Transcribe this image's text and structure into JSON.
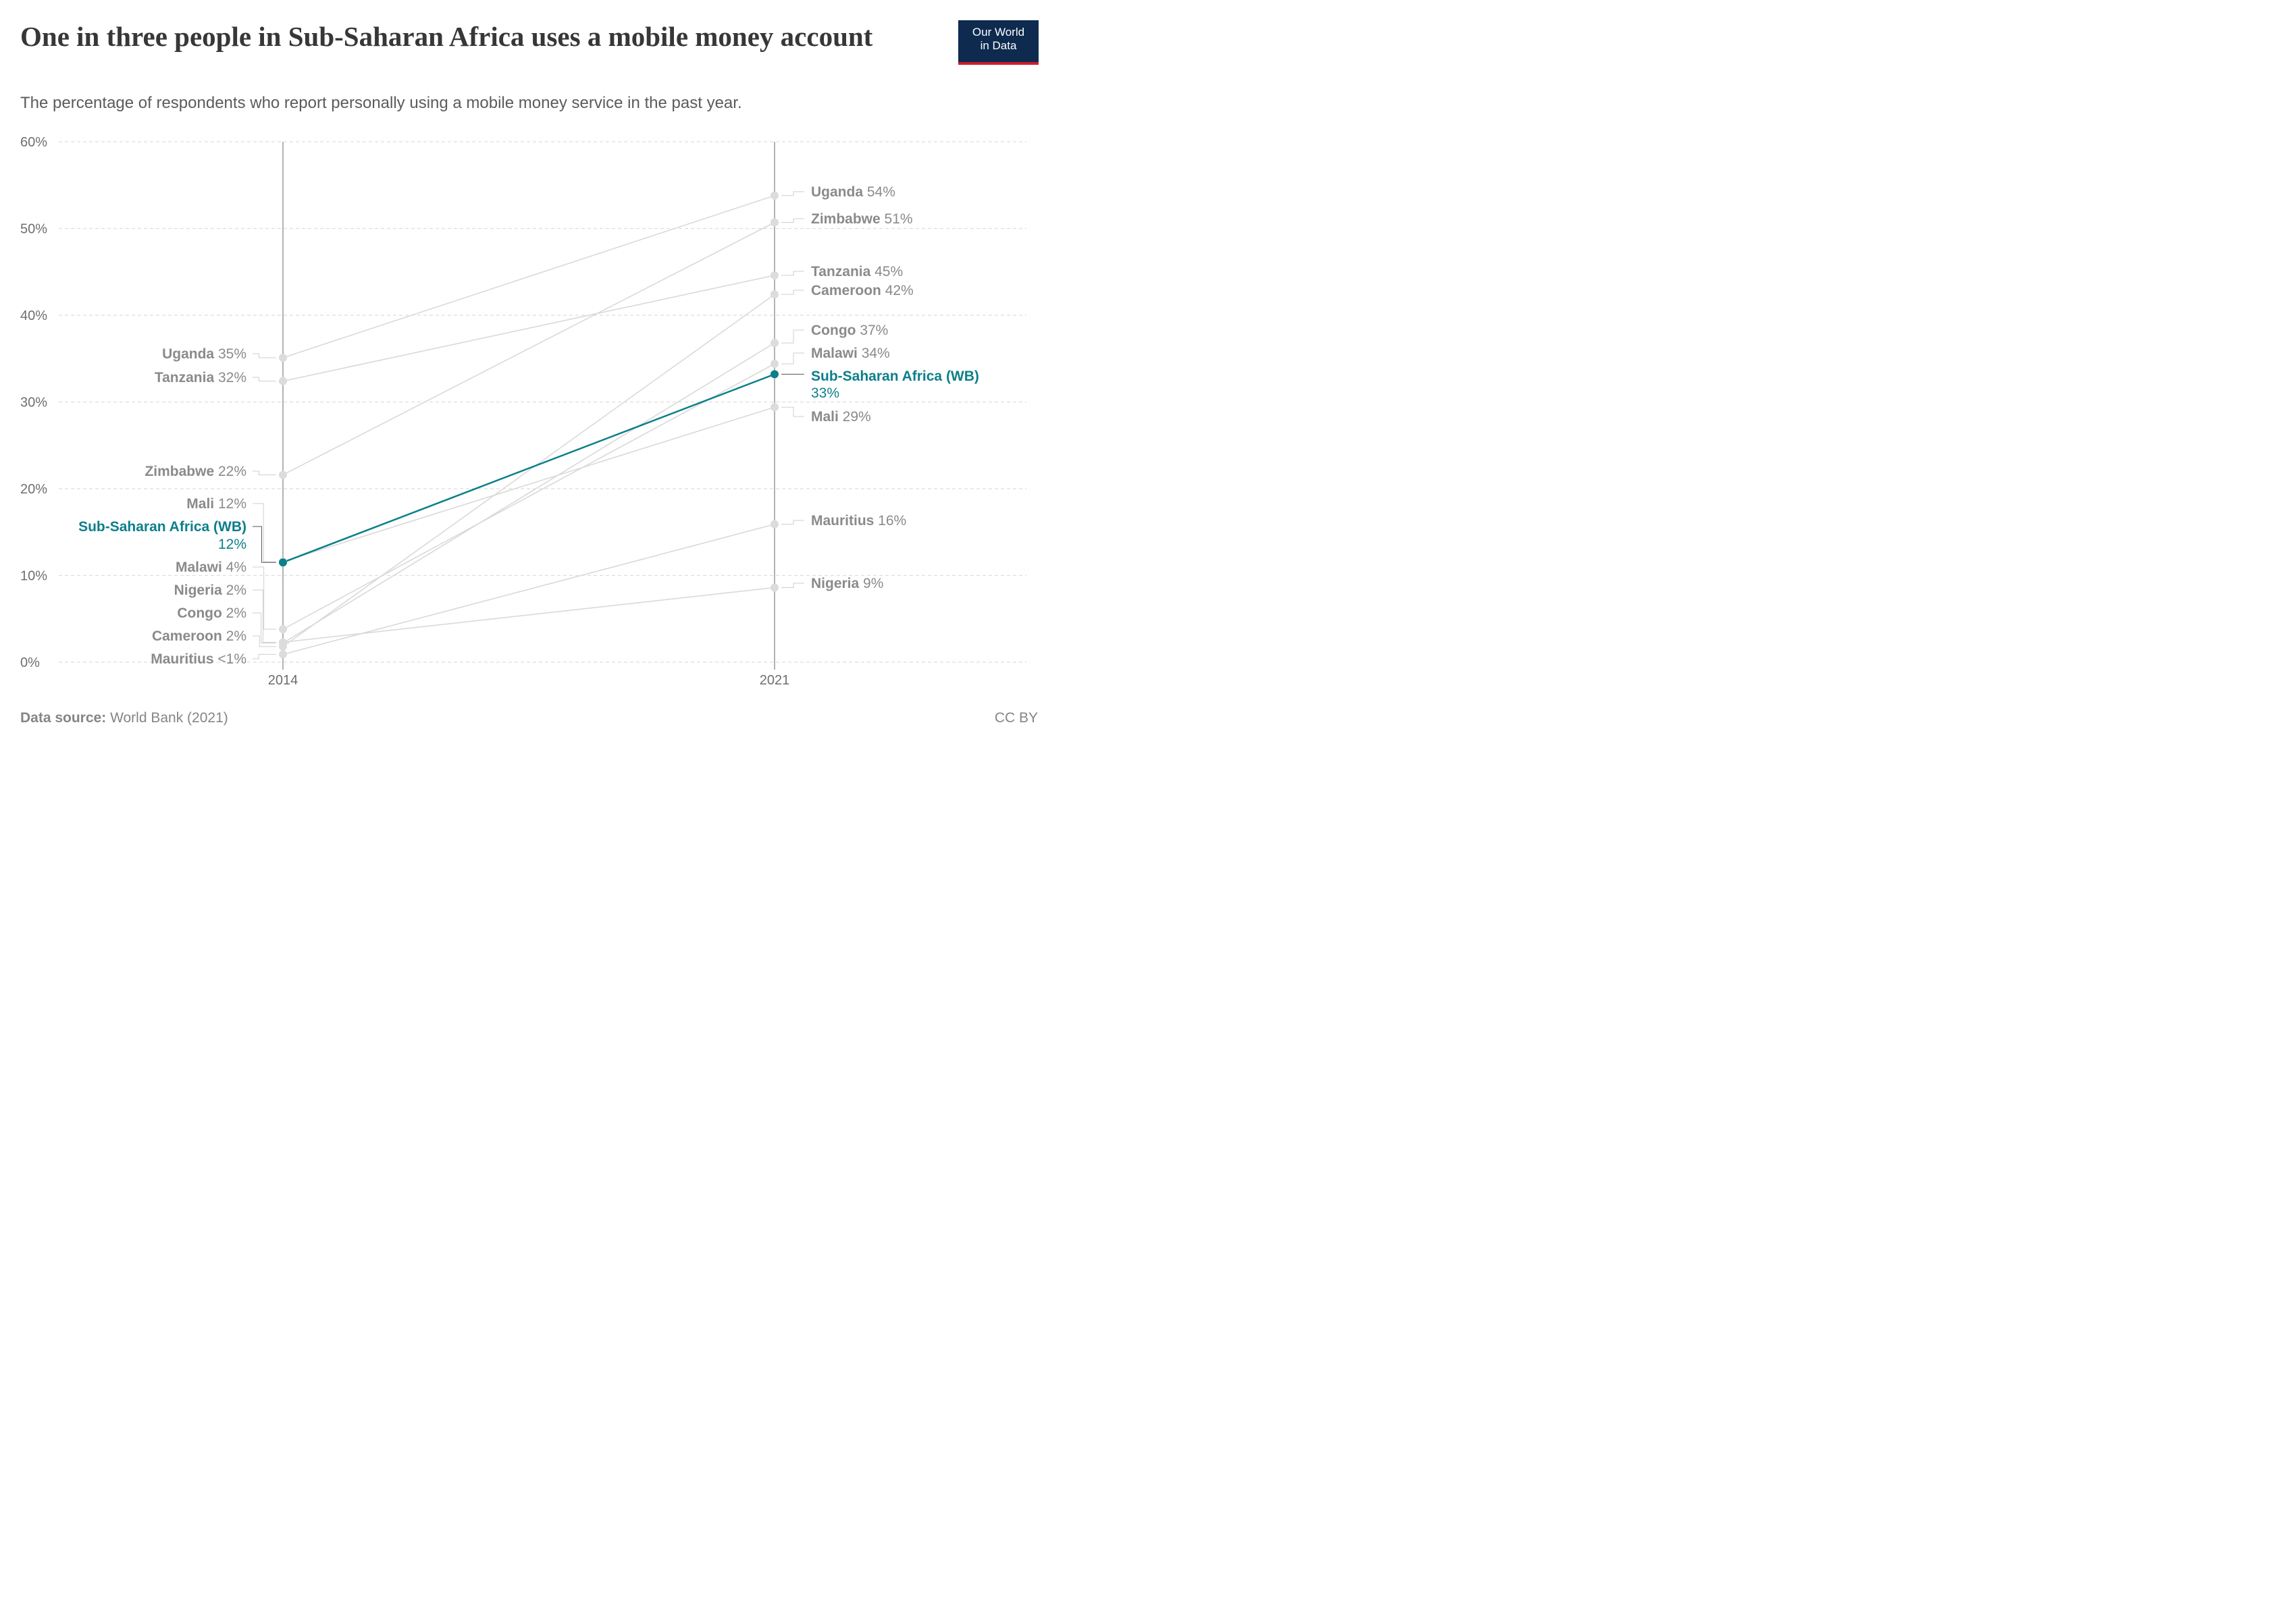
{
  "title": "One in three people in Sub-Saharan Africa uses a mobile money account",
  "subtitle": "The percentage of respondents who report personally using a mobile money service in the past year.",
  "logo": {
    "line1": "Our World",
    "line2": "in Data"
  },
  "footer": {
    "source_label": "Data source:",
    "source_text": "World Bank (2021)",
    "license": "CC BY"
  },
  "colors": {
    "highlight": "#0c7f8a",
    "muted_line": "#d9d9d9",
    "muted_point": "#dcdcdc",
    "axis": "#9a9a9a",
    "grid": "#dddddd",
    "logo_bg": "#0e2a4f",
    "logo_accent": "#cf1e2d"
  },
  "chart_data": {
    "type": "line",
    "chart_style": "slope",
    "x": [
      "2014",
      "2021"
    ],
    "ylim": [
      0,
      60
    ],
    "yticks": [
      "0%",
      "10%",
      "20%",
      "30%",
      "40%",
      "50%",
      "60%"
    ],
    "grid": "horizontal-dashed",
    "series": [
      {
        "name": "Uganda",
        "values": [
          35.1,
          53.8
        ],
        "labels": [
          "35%",
          "54%"
        ],
        "highlight": false
      },
      {
        "name": "Zimbabwe",
        "values": [
          21.6,
          50.7
        ],
        "labels": [
          "22%",
          "51%"
        ],
        "highlight": false
      },
      {
        "name": "Tanzania",
        "values": [
          32.4,
          44.6
        ],
        "labels": [
          "32%",
          "45%"
        ],
        "highlight": false
      },
      {
        "name": "Cameroon",
        "values": [
          1.8,
          42.4
        ],
        "labels": [
          "2%",
          "42%"
        ],
        "highlight": false
      },
      {
        "name": "Congo",
        "values": [
          2.2,
          36.8
        ],
        "labels": [
          "2%",
          "37%"
        ],
        "highlight": false
      },
      {
        "name": "Malawi",
        "values": [
          3.8,
          34.4
        ],
        "labels": [
          "4%",
          "34%"
        ],
        "highlight": false
      },
      {
        "name": "Sub-Saharan Africa (WB)",
        "values": [
          11.5,
          33.2
        ],
        "labels": [
          "12%",
          "33%"
        ],
        "highlight": true
      },
      {
        "name": "Mali",
        "values": [
          11.6,
          29.4
        ],
        "labels": [
          "12%",
          "29%"
        ],
        "highlight": false
      },
      {
        "name": "Mauritius",
        "values": [
          0.9,
          15.9
        ],
        "labels": [
          "<1%",
          "16%"
        ],
        "highlight": false
      },
      {
        "name": "Nigeria",
        "values": [
          2.3,
          8.6
        ],
        "labels": [
          "2%",
          "9%"
        ],
        "highlight": false
      }
    ]
  }
}
